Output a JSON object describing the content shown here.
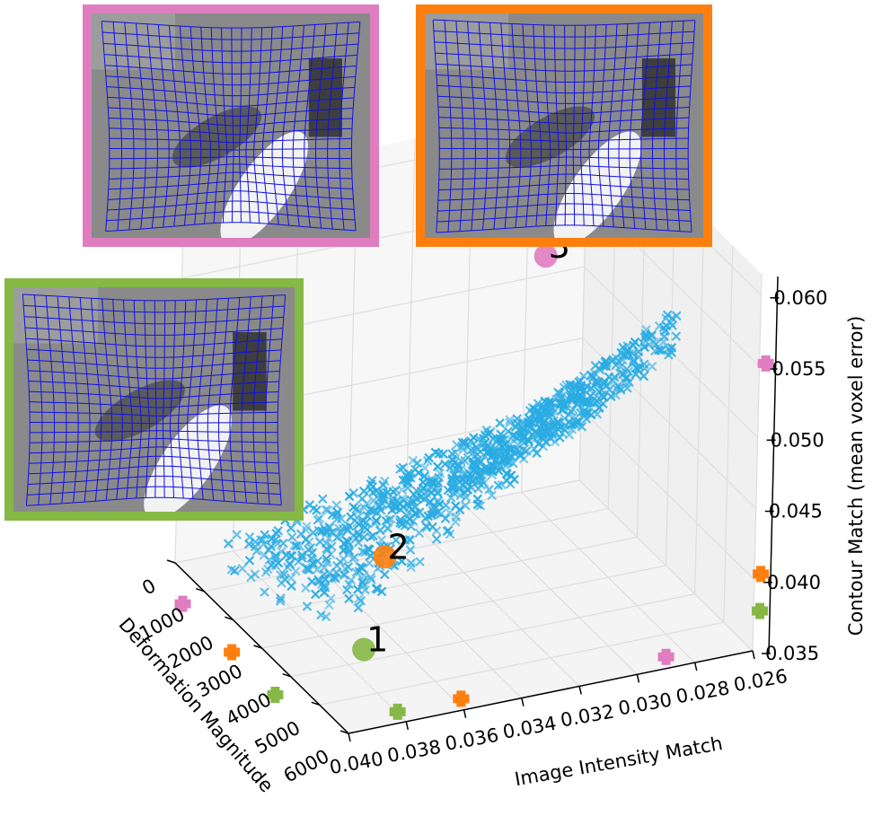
{
  "chart_data": {
    "type": "scatter3d",
    "title": "",
    "xlabel": "Image Intensity Match",
    "ylabel": "Deformation Magnitude",
    "zlabel": "Contour Match (mean voxel error)",
    "xlim": [
      0.04,
      0.026
    ],
    "ylim": [
      0,
      6000
    ],
    "zlim": [
      0.035,
      0.0615
    ],
    "x_ticks": [
      "0.040",
      "0.038",
      "0.036",
      "0.034",
      "0.032",
      "0.030",
      "0.028",
      "0.026"
    ],
    "y_ticks": [
      "0",
      "1000",
      "2000",
      "3000",
      "4000",
      "5000",
      "6000"
    ],
    "z_ticks": [
      "0.035",
      "0.040",
      "0.045",
      "0.050",
      "0.055",
      "0.060"
    ],
    "grid": true,
    "series": [
      {
        "marker": "x",
        "color": "#29abe2",
        "point_count": 900
      }
    ],
    "highlighted_solutions": [
      {
        "label": "1",
        "color": "#86b846",
        "image_intensity": 0.0383,
        "deformation": 4800,
        "contour": 0.0378
      },
      {
        "label": "2",
        "color": "#ff7f0e",
        "image_intensity": 0.0361,
        "deformation": 3300,
        "contour": 0.0404
      },
      {
        "label": "3",
        "color": "#e07cc0",
        "image_intensity": 0.029,
        "deformation": 1600,
        "contour": 0.0552
      }
    ],
    "inset_frame_colors": [
      "#e07cc0",
      "#ff7f0e",
      "#86b846"
    ]
  }
}
